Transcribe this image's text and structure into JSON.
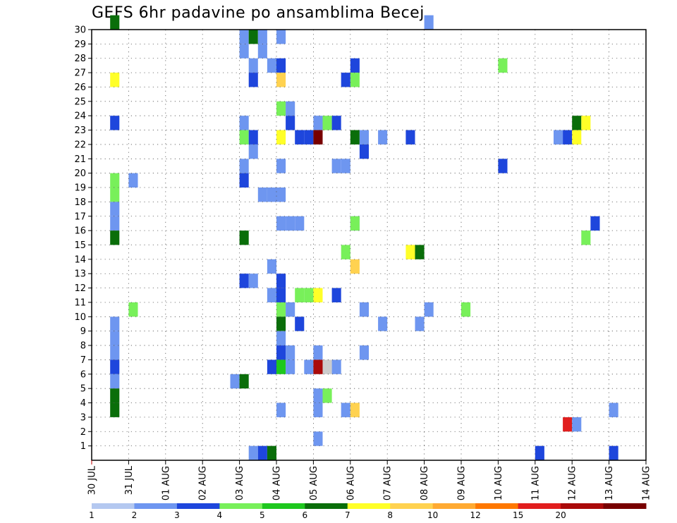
{
  "chart_data": {
    "type": "heatmap",
    "title": "GEFS 6hr padavine po ansamblima Becej",
    "y_ticks": [
      "1",
      "2",
      "3",
      "4",
      "5",
      "6",
      "7",
      "8",
      "9",
      "10",
      "11",
      "12",
      "13",
      "14",
      "15",
      "16",
      "17",
      "18",
      "19",
      "20",
      "21",
      "22",
      "23",
      "24",
      "25",
      "26",
      "27",
      "28",
      "29",
      "30"
    ],
    "x_ticks": [
      "30 JUL",
      "31 JUL",
      "01 AUG",
      "02 AUG",
      "03 AUG",
      "04 AUG",
      "05 AUG",
      "06 AUG",
      "07 AUG",
      "08 AUG",
      "09 AUG",
      "10 AUG",
      "11 AUG",
      "12 AUG",
      "13 AUG",
      "14 AUG"
    ],
    "x_step_hours": 6,
    "color_levels": [
      1,
      2,
      3,
      4,
      5,
      6,
      7,
      8,
      9,
      10,
      12,
      15,
      20
    ],
    "color_level_labels": [
      "1",
      "2",
      "3",
      "4",
      "5",
      "6",
      "7",
      "8",
      "10",
      "12",
      "15",
      "20"
    ],
    "level_colors": [
      "#b4c8f0",
      "#6e96f0",
      "#1e46dc",
      "#78f05a",
      "#1ec81e",
      "#0a6e0a",
      "#ffff28",
      "#ffd250",
      "#ffaa32",
      "#ff7800",
      "#e11e1e",
      "#aa0a0a",
      "#780000"
    ],
    "grid": true,
    "cells": [
      [
        30,
        0.5,
        5
      ],
      [
        26,
        0.5,
        6
      ],
      [
        23,
        0.5,
        2
      ],
      [
        19,
        0.5,
        3
      ],
      [
        18,
        0.5,
        3
      ],
      [
        17,
        0.5,
        1
      ],
      [
        16,
        0.5,
        1
      ],
      [
        15,
        0.5,
        5
      ],
      [
        9,
        0.5,
        1
      ],
      [
        8,
        0.5,
        1
      ],
      [
        7,
        0.5,
        1
      ],
      [
        6,
        0.5,
        2
      ],
      [
        5,
        0.5,
        1
      ],
      [
        4,
        0.5,
        5
      ],
      [
        3,
        0.5,
        5
      ],
      [
        19,
        1,
        1
      ],
      [
        10,
        1,
        3
      ],
      [
        29,
        4,
        1
      ],
      [
        28,
        4,
        1
      ],
      [
        23,
        4,
        1
      ],
      [
        22,
        4,
        3
      ],
      [
        20,
        4,
        1
      ],
      [
        19,
        4,
        2
      ],
      [
        15,
        4,
        5
      ],
      [
        12,
        4,
        2
      ],
      [
        5,
        3.75,
        1
      ],
      [
        5,
        4,
        5
      ],
      [
        29,
        4.25,
        5
      ],
      [
        27,
        4.25,
        1
      ],
      [
        26,
        4.25,
        2
      ],
      [
        22,
        4.25,
        2
      ],
      [
        21,
        4.25,
        1
      ],
      [
        12,
        4.25,
        1
      ],
      [
        0,
        4.25,
        1
      ],
      [
        29,
        4.5,
        1
      ],
      [
        28,
        4.5,
        1
      ],
      [
        18,
        4.5,
        1
      ],
      [
        0,
        4.5,
        2
      ],
      [
        27,
        4.75,
        1
      ],
      [
        18,
        4.75,
        1
      ],
      [
        13,
        4.75,
        1
      ],
      [
        11,
        4.75,
        1
      ],
      [
        6,
        4.75,
        2
      ],
      [
        0,
        4.75,
        5
      ],
      [
        29,
        5,
        1
      ],
      [
        27,
        5,
        2
      ],
      [
        26,
        5,
        7
      ],
      [
        24,
        5,
        3
      ],
      [
        22,
        5,
        6
      ],
      [
        20,
        5,
        1
      ],
      [
        18,
        5,
        1
      ],
      [
        16,
        5,
        1
      ],
      [
        12,
        5,
        2
      ],
      [
        11,
        5,
        2
      ],
      [
        10,
        5,
        3
      ],
      [
        9,
        5,
        5
      ],
      [
        8,
        5,
        1
      ],
      [
        7,
        5,
        2
      ],
      [
        6,
        5,
        4
      ],
      [
        3,
        5,
        1
      ],
      [
        24,
        5.25,
        1
      ],
      [
        23,
        5.25,
        2
      ],
      [
        16,
        5.25,
        1
      ],
      [
        10,
        5.25,
        1
      ],
      [
        7,
        5.25,
        1
      ],
      [
        6,
        5.25,
        1
      ],
      [
        22,
        5.5,
        2
      ],
      [
        16,
        5.5,
        1
      ],
      [
        11,
        5.5,
        3
      ],
      [
        9,
        5.5,
        2
      ],
      [
        22,
        5.75,
        2
      ],
      [
        11,
        5.75,
        3
      ],
      [
        6,
        5.75,
        1
      ],
      [
        23,
        6,
        1
      ],
      [
        22,
        6,
        12
      ],
      [
        11,
        6,
        6
      ],
      [
        7,
        6,
        1
      ],
      [
        6,
        6,
        11
      ],
      [
        4,
        6,
        1
      ],
      [
        3,
        6,
        1
      ],
      [
        1,
        6,
        1
      ],
      [
        23,
        6.25,
        3
      ],
      [
        6,
        6.25,
        13
      ],
      [
        4,
        6.25,
        3
      ],
      [
        23,
        6.5,
        2
      ],
      [
        20,
        6.5,
        1
      ],
      [
        11,
        6.5,
        2
      ],
      [
        6,
        6.5,
        1
      ],
      [
        20,
        6.75,
        1
      ],
      [
        14,
        6.75,
        3
      ],
      [
        3,
        6.75,
        1
      ],
      [
        27,
        7,
        2
      ],
      [
        26,
        7,
        3
      ],
      [
        22,
        7,
        5
      ],
      [
        16,
        7,
        1
      ],
      [
        13,
        7,
        7
      ],
      [
        3,
        7,
        7
      ],
      [
        26,
        6.75,
        2
      ],
      [
        16,
        7,
        3
      ],
      [
        22,
        7.25,
        1
      ],
      [
        21,
        7.25,
        2
      ],
      [
        10,
        7.25,
        1
      ],
      [
        7,
        7.25,
        1
      ],
      [
        22,
        7.75,
        1
      ],
      [
        9,
        7.75,
        1
      ],
      [
        22,
        8.5,
        2
      ],
      [
        14,
        8.5,
        6
      ],
      [
        14,
        8.75,
        5
      ],
      [
        9,
        8.75,
        1
      ],
      [
        30,
        9,
        1
      ],
      [
        10,
        9,
        1
      ],
      [
        10,
        10,
        3
      ],
      [
        27,
        11,
        3
      ],
      [
        20,
        11,
        2
      ],
      [
        0,
        12,
        2
      ],
      [
        22,
        12.5,
        1
      ],
      [
        22,
        12.75,
        2
      ],
      [
        2,
        12.75,
        10
      ],
      [
        23,
        13,
        5
      ],
      [
        22,
        13,
        6
      ],
      [
        2,
        13,
        1
      ],
      [
        23,
        13.25,
        6
      ],
      [
        15,
        13.25,
        3
      ],
      [
        16,
        13.5,
        2
      ],
      [
        3,
        14,
        1
      ],
      [
        0,
        14,
        2
      ]
    ]
  }
}
